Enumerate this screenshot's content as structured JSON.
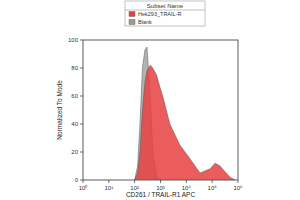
{
  "chart_data": {
    "type": "area",
    "x_label": "CD261 / TRAIL-R1 APC",
    "y_label": "Normalized To Mode",
    "legend_title": "Subset Name",
    "x": [
      100,
      130,
      160,
      200,
      250,
      300,
      400,
      500,
      700,
      1000,
      1300,
      2300,
      5600,
      14000,
      34000,
      83000,
      130000,
      200000,
      490000,
      760000
    ],
    "series": [
      {
        "name": "Hek293_TRAIL-R",
        "color": "#e8413f",
        "values": [
          0,
          5,
          20,
          50,
          70,
          78,
          82,
          80,
          75,
          65,
          58,
          40,
          25,
          15,
          5,
          8,
          12,
          10,
          2,
          0
        ]
      },
      {
        "name": "Blank",
        "color": "#9a9a9a",
        "values": [
          0,
          10,
          40,
          80,
          93,
          95,
          60,
          20,
          3,
          0,
          0,
          0,
          0,
          0,
          0,
          0,
          0,
          0,
          0,
          0
        ]
      }
    ],
    "log": "x",
    "xlim": [
      1,
      1000000
    ],
    "xticks": [
      {
        "value": 1,
        "label": "10⁰"
      },
      {
        "value": 10,
        "label": "10¹"
      },
      {
        "value": 100,
        "label": "10²"
      },
      {
        "value": 1000,
        "label": "10³"
      },
      {
        "value": 10000,
        "label": "10⁴"
      },
      {
        "value": 100000,
        "label": "10⁵"
      },
      {
        "value": 1000000,
        "label": "10⁶"
      }
    ],
    "ylim": [
      0,
      100
    ],
    "yticks": [
      0,
      20,
      40,
      60,
      80,
      100
    ],
    "grid": false,
    "legend": "top"
  }
}
